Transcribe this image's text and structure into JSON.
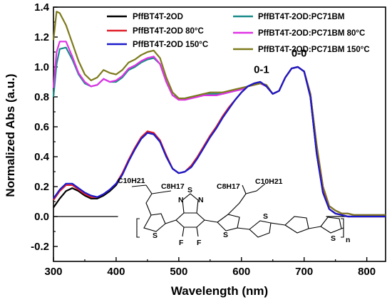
{
  "chart_data": {
    "type": "line",
    "title": "",
    "xlabel": "Wavelength (nm)",
    "ylabel": "Normalized Abs (a.u.)",
    "xlim": [
      300,
      830
    ],
    "ylim": [
      -0.3,
      1.4
    ],
    "xticks": [
      300,
      400,
      500,
      600,
      700,
      800
    ],
    "yticks": [
      -0.2,
      0.0,
      0.2,
      0.4,
      0.6,
      0.8,
      1.0,
      1.2,
      1.4
    ],
    "xtick_labels": [
      "300",
      "400",
      "500",
      "600",
      "700",
      "800"
    ],
    "ytick_labels": [
      "-0.2",
      "0.0",
      "0.2",
      "0.4",
      "0.6",
      "0.8",
      "1.0",
      "1.2",
      "1.4"
    ],
    "legend_position": "top",
    "grid": false,
    "annotations": [
      "0-1",
      "0-0"
    ],
    "series": [
      {
        "name": "PffBT4T-2OD",
        "color": "#000000",
        "x": [
          300,
          310,
          320,
          330,
          340,
          350,
          360,
          370,
          380,
          390,
          400,
          410,
          420,
          430,
          440,
          450,
          460,
          470,
          480,
          490,
          500,
          510,
          520,
          530,
          540,
          550,
          560,
          570,
          580,
          590,
          600,
          610,
          620,
          630,
          640,
          650,
          660,
          670,
          680,
          690,
          700,
          710,
          720,
          730,
          740,
          750,
          760,
          770,
          780,
          790,
          800,
          810,
          820,
          830
        ],
        "y": [
          0.06,
          0.12,
          0.17,
          0.19,
          0.17,
          0.14,
          0.12,
          0.12,
          0.14,
          0.17,
          0.21,
          0.28,
          0.37,
          0.45,
          0.52,
          0.56,
          0.55,
          0.5,
          0.4,
          0.32,
          0.29,
          0.3,
          0.34,
          0.4,
          0.47,
          0.54,
          0.6,
          0.67,
          0.73,
          0.78,
          0.83,
          0.87,
          0.89,
          0.9,
          0.87,
          0.82,
          0.84,
          0.93,
          0.99,
          1.0,
          0.97,
          0.8,
          0.42,
          0.16,
          0.05,
          0.02,
          0.01,
          0.0,
          0.0,
          0.0,
          0.0,
          0.0,
          0.0,
          0.0
        ]
      },
      {
        "name": "PffBT4T-2OD 80°C",
        "color": "#e0202a",
        "x": [
          300,
          310,
          320,
          330,
          340,
          350,
          360,
          370,
          380,
          390,
          400,
          410,
          420,
          430,
          440,
          450,
          460,
          470,
          480,
          490,
          500,
          510,
          520,
          530,
          540,
          550,
          560,
          570,
          580,
          590,
          600,
          610,
          620,
          630,
          640,
          650,
          660,
          670,
          680,
          690,
          700,
          710,
          720,
          730,
          740,
          750,
          760,
          770,
          780,
          790,
          800,
          810,
          820,
          830
        ],
        "y": [
          0.11,
          0.17,
          0.21,
          0.21,
          0.18,
          0.15,
          0.13,
          0.13,
          0.15,
          0.18,
          0.22,
          0.29,
          0.38,
          0.46,
          0.53,
          0.57,
          0.56,
          0.51,
          0.41,
          0.32,
          0.29,
          0.3,
          0.34,
          0.4,
          0.47,
          0.54,
          0.6,
          0.67,
          0.73,
          0.78,
          0.83,
          0.87,
          0.89,
          0.9,
          0.87,
          0.82,
          0.84,
          0.93,
          0.99,
          1.0,
          0.97,
          0.8,
          0.43,
          0.17,
          0.05,
          0.02,
          0.01,
          0.0,
          0.0,
          0.0,
          0.0,
          0.0,
          0.0,
          0.0
        ]
      },
      {
        "name": "PffBT4T-2OD 150°C",
        "color": "#1a1acc",
        "x": [
          300,
          310,
          320,
          330,
          340,
          350,
          360,
          370,
          380,
          390,
          400,
          410,
          420,
          430,
          440,
          450,
          460,
          470,
          480,
          490,
          500,
          510,
          520,
          530,
          540,
          550,
          560,
          570,
          580,
          590,
          600,
          610,
          620,
          630,
          640,
          650,
          660,
          670,
          680,
          690,
          700,
          710,
          720,
          730,
          740,
          750,
          760,
          770,
          780,
          790,
          800,
          810,
          820,
          830
        ],
        "y": [
          0.12,
          0.18,
          0.22,
          0.22,
          0.19,
          0.16,
          0.14,
          0.13,
          0.15,
          0.18,
          0.22,
          0.28,
          0.37,
          0.45,
          0.52,
          0.56,
          0.55,
          0.5,
          0.4,
          0.32,
          0.29,
          0.3,
          0.33,
          0.39,
          0.46,
          0.53,
          0.59,
          0.66,
          0.72,
          0.78,
          0.83,
          0.87,
          0.89,
          0.9,
          0.87,
          0.82,
          0.84,
          0.93,
          0.99,
          1.0,
          0.97,
          0.8,
          0.42,
          0.16,
          0.05,
          0.02,
          0.01,
          0.0,
          0.0,
          0.0,
          0.0,
          0.0,
          0.0,
          0.0
        ]
      },
      {
        "name": "PffBT4T-2OD:PC71BM",
        "color": "#1a8a8a",
        "x": [
          300,
          305,
          310,
          320,
          330,
          340,
          350,
          360,
          370,
          380,
          390,
          400,
          410,
          420,
          430,
          440,
          450,
          460,
          470,
          480,
          490,
          500,
          510,
          520,
          530,
          540,
          550,
          560,
          570,
          580,
          590,
          600,
          610,
          620,
          630,
          640,
          650,
          660,
          670,
          680,
          690,
          700,
          710,
          720,
          730,
          740,
          750,
          760,
          770,
          780,
          790,
          800,
          810,
          820,
          830
        ],
        "y": [
          0.8,
          1.02,
          1.12,
          1.13,
          1.05,
          0.95,
          0.89,
          0.87,
          0.88,
          0.92,
          0.9,
          0.9,
          0.93,
          0.98,
          1.0,
          1.03,
          1.05,
          1.06,
          1.02,
          0.9,
          0.81,
          0.79,
          0.79,
          0.8,
          0.81,
          0.82,
          0.82,
          0.82,
          0.82,
          0.83,
          0.84,
          0.85,
          0.87,
          0.88,
          0.89,
          0.87,
          0.82,
          0.84,
          0.93,
          0.99,
          1.0,
          0.97,
          0.82,
          0.47,
          0.2,
          0.07,
          0.04,
          0.02,
          0.02,
          0.01,
          0.01,
          0.01,
          0.01,
          0.01,
          0.01
        ]
      },
      {
        "name": "PffBT4T-2OD:PC71BM 80°C",
        "color": "#e033e6",
        "x": [
          300,
          305,
          310,
          320,
          330,
          340,
          350,
          360,
          370,
          380,
          390,
          400,
          410,
          420,
          430,
          440,
          450,
          460,
          470,
          480,
          490,
          500,
          510,
          520,
          530,
          540,
          550,
          560,
          570,
          580,
          590,
          600,
          610,
          620,
          630,
          640,
          650,
          660,
          670,
          680,
          690,
          700,
          710,
          720,
          730,
          740,
          750,
          760,
          770,
          780,
          790,
          800,
          810,
          820,
          830
        ],
        "y": [
          0.86,
          1.1,
          1.17,
          1.17,
          1.07,
          0.96,
          0.9,
          0.87,
          0.88,
          0.92,
          0.9,
          0.91,
          0.94,
          0.99,
          1.01,
          1.04,
          1.06,
          1.07,
          1.02,
          0.9,
          0.81,
          0.78,
          0.78,
          0.79,
          0.8,
          0.81,
          0.81,
          0.81,
          0.82,
          0.83,
          0.84,
          0.85,
          0.87,
          0.88,
          0.89,
          0.87,
          0.82,
          0.84,
          0.93,
          0.99,
          1.0,
          0.97,
          0.82,
          0.47,
          0.2,
          0.07,
          0.04,
          0.02,
          0.02,
          0.01,
          0.01,
          0.01,
          0.01,
          0.01,
          0.01
        ]
      },
      {
        "name": "PffBT4T-2OD:PC71BM 150°C",
        "color": "#7d7a1c",
        "x": [
          300,
          305,
          310,
          320,
          330,
          340,
          350,
          360,
          370,
          380,
          390,
          400,
          410,
          420,
          430,
          440,
          450,
          460,
          470,
          480,
          490,
          500,
          510,
          520,
          530,
          540,
          550,
          560,
          570,
          580,
          590,
          600,
          610,
          620,
          630,
          640,
          650,
          660,
          670,
          680,
          690,
          700,
          710,
          720,
          730,
          740,
          750,
          760,
          770,
          780,
          790,
          800,
          810,
          820,
          830
        ],
        "y": [
          1.18,
          1.37,
          1.36,
          1.28,
          1.16,
          1.04,
          0.95,
          0.91,
          0.93,
          0.98,
          0.96,
          0.95,
          0.98,
          1.03,
          1.05,
          1.08,
          1.1,
          1.11,
          1.06,
          0.93,
          0.83,
          0.79,
          0.79,
          0.8,
          0.81,
          0.82,
          0.83,
          0.83,
          0.83,
          0.84,
          0.85,
          0.86,
          0.87,
          0.88,
          0.89,
          0.88,
          0.82,
          0.84,
          0.93,
          0.99,
          1.0,
          0.97,
          0.82,
          0.48,
          0.2,
          0.07,
          0.04,
          0.02,
          0.02,
          0.01,
          0.01,
          0.01,
          0.01,
          0.01,
          0.01
        ]
      }
    ]
  },
  "molecule": {
    "alkyl_left": "C10H21",
    "alkyl_left_mid": "C8H17",
    "alkyl_right_mid": "C8H17",
    "alkyl_right": "C10H21",
    "thiadiazole_n1": "N",
    "thiadiazole_s": "S",
    "thiadiazole_n2": "N",
    "f1": "F",
    "f2": "F",
    "s1": "S",
    "s2": "S",
    "s3": "S",
    "s4": "S",
    "n_label": "n"
  }
}
